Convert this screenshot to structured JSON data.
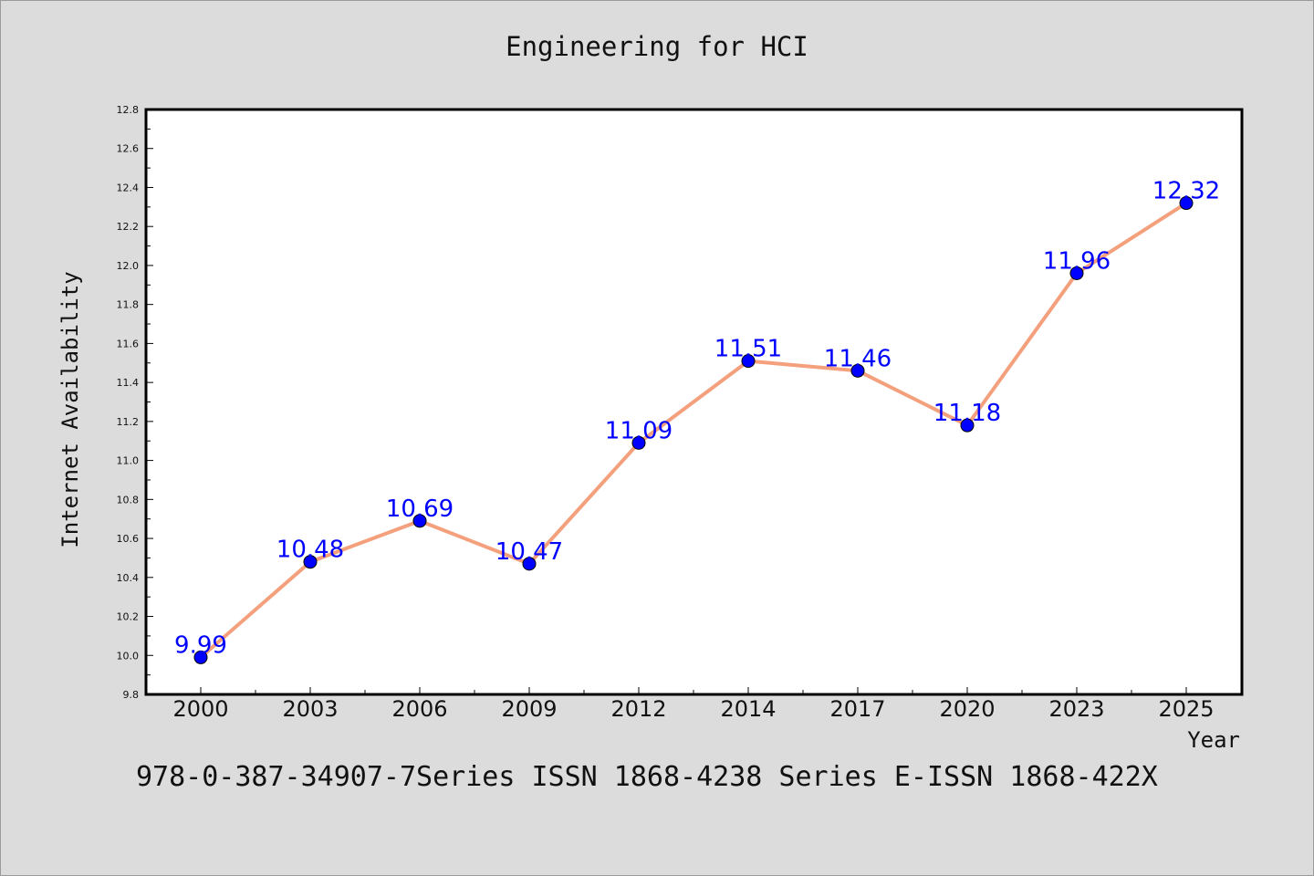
{
  "chart_data": {
    "type": "line",
    "title": "Engineering for HCI",
    "xlabel": "Year",
    "ylabel": "Internet Availability",
    "categories": [
      "2000",
      "2003",
      "2006",
      "2009",
      "2012",
      "2014",
      "2017",
      "2020",
      "2023",
      "2025"
    ],
    "series": [
      {
        "values": [
          9.99,
          10.48,
          10.69,
          10.47,
          11.09,
          11.51,
          11.46,
          11.18,
          11.96,
          12.32
        ],
        "data_labels": [
          "9.99",
          "10.48",
          "10.69",
          "10.47",
          "11.09",
          "11.51",
          "11.46",
          "11.18",
          "11.96",
          "12.32"
        ]
      }
    ],
    "ylim": [
      9.8,
      12.8
    ],
    "yticks": [
      "9.8",
      "10.0",
      "10.2",
      "10.4",
      "10.6",
      "10.8",
      "11.0",
      "11.2",
      "11.4",
      "11.6",
      "11.8",
      "12.0",
      "12.2",
      "12.4",
      "12.6",
      "12.8"
    ],
    "grid": false,
    "legend": "none",
    "colors": {
      "line": "#f4a07c",
      "marker": "#0000ff",
      "data_label": "#0000ff",
      "background": "#dcdcdc",
      "plot_area": "#ffffff"
    }
  },
  "footnote": "978-0-387-34907-7Series ISSN 1868-4238 Series E-ISSN 1868-422X"
}
